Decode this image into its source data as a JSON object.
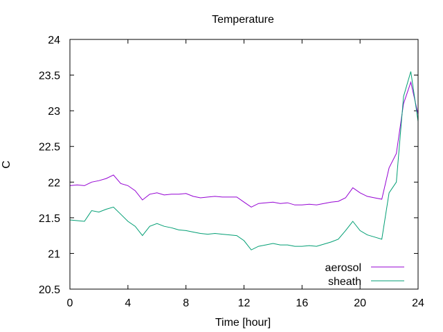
{
  "chart_data": {
    "type": "line",
    "title": "Temperature",
    "xlabel": "Time [hour]",
    "ylabel": "C",
    "xlim": [
      0,
      24
    ],
    "ylim": [
      20.5,
      24
    ],
    "xticks": [
      0,
      4,
      8,
      12,
      16,
      20,
      24
    ],
    "yticks": [
      20.5,
      21,
      21.5,
      22,
      22.5,
      23,
      23.5,
      24
    ],
    "legend_position": "bottom-right",
    "grid": false,
    "series": [
      {
        "name": "aerosol",
        "color": "#9400d3",
        "x": [
          0,
          0.5,
          1,
          1.5,
          2,
          2.5,
          3,
          3.5,
          4,
          4.5,
          5,
          5.5,
          6,
          6.5,
          7,
          7.5,
          8,
          8.5,
          9,
          9.5,
          10,
          10.5,
          11,
          11.5,
          12,
          12.5,
          13,
          13.5,
          14,
          14.5,
          15,
          15.5,
          16,
          16.5,
          17,
          17.5,
          18,
          18.5,
          19,
          19.5,
          20,
          20.5,
          21,
          21.5,
          22,
          22.5,
          23,
          23.5,
          24
        ],
        "y": [
          21.95,
          21.96,
          21.95,
          22.0,
          22.02,
          22.05,
          22.1,
          21.98,
          21.95,
          21.88,
          21.75,
          21.83,
          21.85,
          21.82,
          21.83,
          21.83,
          21.84,
          21.8,
          21.78,
          21.79,
          21.8,
          21.79,
          21.79,
          21.79,
          21.72,
          21.65,
          21.7,
          21.71,
          21.72,
          21.7,
          21.71,
          21.68,
          21.68,
          21.69,
          21.68,
          21.7,
          21.72,
          21.73,
          21.78,
          21.92,
          21.85,
          21.8,
          21.78,
          21.76,
          22.2,
          22.4,
          23.1,
          23.4,
          22.95
        ]
      },
      {
        "name": "sheath",
        "color": "#009e73",
        "x": [
          0,
          0.5,
          1,
          1.5,
          2,
          2.5,
          3,
          3.5,
          4,
          4.5,
          5,
          5.5,
          6,
          6.5,
          7,
          7.5,
          8,
          8.5,
          9,
          9.5,
          10,
          10.5,
          11,
          11.5,
          12,
          12.5,
          13,
          13.5,
          14,
          14.5,
          15,
          15.5,
          16,
          16.5,
          17,
          17.5,
          18,
          18.5,
          19,
          19.5,
          20,
          20.5,
          21,
          21.5,
          22,
          22.5,
          23,
          23.5,
          24
        ],
        "y": [
          21.47,
          21.46,
          21.45,
          21.6,
          21.58,
          21.62,
          21.65,
          21.55,
          21.45,
          21.38,
          21.25,
          21.38,
          21.42,
          21.38,
          21.36,
          21.33,
          21.32,
          21.3,
          21.28,
          21.27,
          21.28,
          21.27,
          21.26,
          21.25,
          21.18,
          21.05,
          21.1,
          21.12,
          21.14,
          21.12,
          21.12,
          21.1,
          21.1,
          21.11,
          21.1,
          21.13,
          21.16,
          21.2,
          21.32,
          21.45,
          21.32,
          21.26,
          21.23,
          21.2,
          21.85,
          22.0,
          23.2,
          23.55,
          22.85
        ]
      }
    ]
  }
}
